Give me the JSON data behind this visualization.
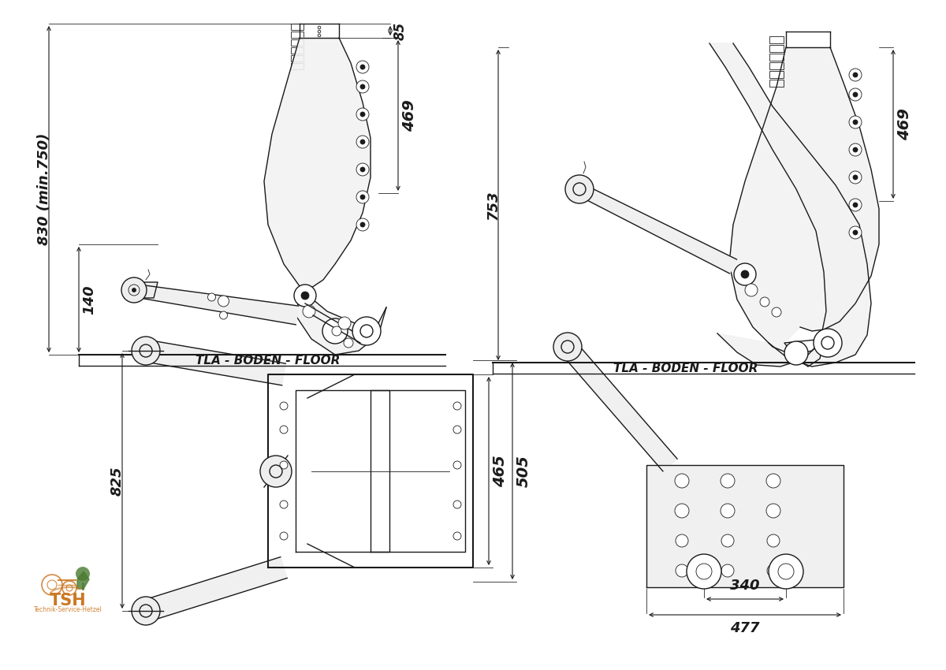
{
  "bg_color": "#ffffff",
  "lc": "#1a1a1a",
  "dc": "#1a1a1a",
  "logo_green": "#4a7a30",
  "logo_orange": "#cc7722",
  "dim_fs": 13,
  "label_fs": 10,
  "annotations": {
    "tl_830": "830 (min.750)",
    "tl_140": "140",
    "tl_85": "85",
    "tl_469": "469",
    "tl_floor": "TLA - BODEN - FLOOR",
    "tr_753": "753",
    "tr_469": "469",
    "tr_floor": "TLA - BODEN - FLOOR",
    "bl_825": "825",
    "bl_465": "465",
    "bl_505": "505",
    "br_340": "340",
    "br_477": "477"
  }
}
